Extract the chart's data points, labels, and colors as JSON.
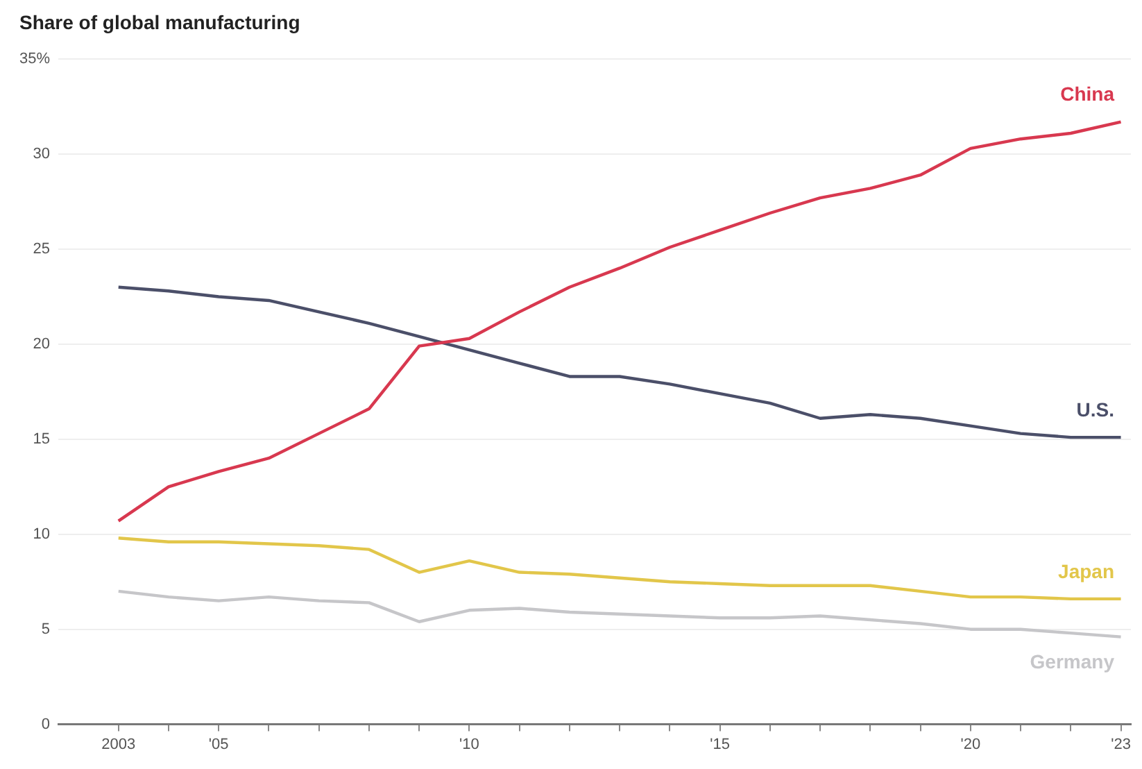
{
  "chart_data": {
    "type": "line",
    "title": "Share of global manufacturing",
    "x": [
      2003,
      2004,
      2005,
      2006,
      2007,
      2008,
      2009,
      2010,
      2011,
      2012,
      2013,
      2014,
      2015,
      2016,
      2017,
      2018,
      2019,
      2020,
      2021,
      2022,
      2023
    ],
    "series": [
      {
        "name": "China",
        "color": "#d8384f",
        "values": [
          10.7,
          12.5,
          13.3,
          14.0,
          15.3,
          16.6,
          19.9,
          20.3,
          21.7,
          23.0,
          24.0,
          25.1,
          26.0,
          26.9,
          27.7,
          28.2,
          28.9,
          30.3,
          30.8,
          31.1,
          31.7
        ]
      },
      {
        "name": "U.S.",
        "color": "#4b4f69",
        "values": [
          23.0,
          22.8,
          22.5,
          22.3,
          21.7,
          21.1,
          20.4,
          19.7,
          19.0,
          18.3,
          18.3,
          17.9,
          17.4,
          16.9,
          16.1,
          16.3,
          16.1,
          15.7,
          15.3,
          15.1,
          15.1
        ]
      },
      {
        "name": "Japan",
        "color": "#e2c64a",
        "values": [
          9.8,
          9.6,
          9.6,
          9.5,
          9.4,
          9.2,
          8.0,
          8.6,
          8.0,
          7.9,
          7.7,
          7.5,
          7.4,
          7.3,
          7.3,
          7.3,
          7.0,
          6.7,
          6.7,
          6.6,
          6.6
        ]
      },
      {
        "name": "Germany",
        "color": "#c6c6c9",
        "values": [
          7.0,
          6.7,
          6.5,
          6.7,
          6.5,
          6.4,
          5.4,
          6.0,
          6.1,
          5.9,
          5.8,
          5.7,
          5.6,
          5.6,
          5.7,
          5.5,
          5.3,
          5.0,
          5.0,
          4.8,
          4.6
        ]
      }
    ],
    "xlim": [
      2001.8,
      2023.2
    ],
    "xticks": [
      {
        "value": 2003,
        "label": "2003"
      },
      {
        "value": 2004,
        "label": null
      },
      {
        "value": 2005,
        "label": "'05"
      },
      {
        "value": 2006,
        "label": null
      },
      {
        "value": 2007,
        "label": null
      },
      {
        "value": 2008,
        "label": null
      },
      {
        "value": 2009,
        "label": null
      },
      {
        "value": 2010,
        "label": "'10"
      },
      {
        "value": 2011,
        "label": null
      },
      {
        "value": 2012,
        "label": null
      },
      {
        "value": 2013,
        "label": null
      },
      {
        "value": 2014,
        "label": null
      },
      {
        "value": 2015,
        "label": "'15"
      },
      {
        "value": 2016,
        "label": null
      },
      {
        "value": 2017,
        "label": null
      },
      {
        "value": 2018,
        "label": null
      },
      {
        "value": 2019,
        "label": null
      },
      {
        "value": 2020,
        "label": "'20"
      },
      {
        "value": 2021,
        "label": null
      },
      {
        "value": 2022,
        "label": null
      },
      {
        "value": 2023,
        "label": "'23"
      }
    ],
    "ylim": [
      0,
      35
    ],
    "yticks": [
      0,
      5,
      10,
      15,
      20,
      25,
      30,
      {
        "value": 35,
        "label": "35%"
      }
    ],
    "grid": "y",
    "legend": false,
    "marker": "none",
    "line_style": "solid"
  }
}
